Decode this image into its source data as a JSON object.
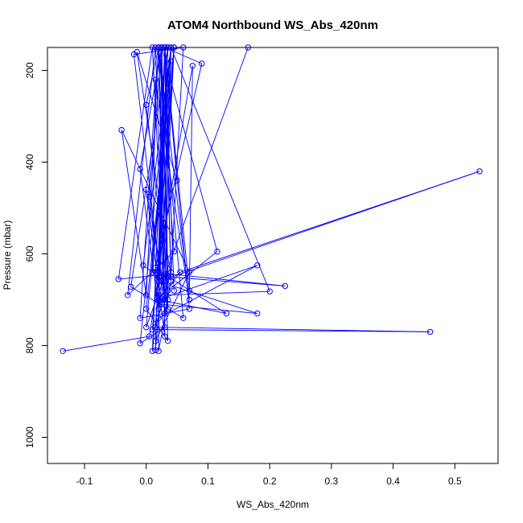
{
  "chart_data": {
    "type": "line",
    "title": "ATOM4 Northbound WS_Abs_420nm",
    "xlabel": "WS_Abs_420nm",
    "ylabel": "Pressure (mbar)",
    "xlim": [
      -0.16,
      0.57
    ],
    "ylim": [
      1057,
      150
    ],
    "y_reversed": true,
    "grid": false,
    "legend": "none",
    "x_ticks": [
      -0.1,
      0.0,
      0.1,
      0.2,
      0.3,
      0.4,
      0.5
    ],
    "x_tick_labels": [
      "-0.1",
      "0.0",
      "0.1",
      "0.2",
      "0.3",
      "0.4",
      "0.5"
    ],
    "y_ticks": [
      200,
      400,
      600,
      800,
      1000
    ],
    "y_tick_labels": [
      "200",
      "400",
      "600",
      "800",
      "1000"
    ],
    "series": [
      {
        "color": "#0000ff",
        "marker": "open-circle",
        "points": [
          [
            -0.135,
            812
          ],
          [
            0.005,
            780
          ],
          [
            0.02,
            650
          ],
          [
            0.03,
            150
          ],
          [
            0.04,
            640
          ],
          [
            0.015,
            760
          ],
          [
            0.46,
            770
          ],
          [
            0.01,
            765
          ],
          [
            0.02,
            600
          ],
          [
            0.045,
            150
          ],
          [
            0.025,
            710
          ],
          [
            0.18,
            730
          ],
          [
            0.02,
            660
          ],
          [
            0.54,
            420
          ],
          [
            0.055,
            640
          ],
          [
            0.02,
            700
          ],
          [
            0.13,
            730
          ],
          [
            0.03,
            645
          ],
          [
            -0.045,
            655
          ],
          [
            0.01,
            150
          ],
          [
            0.03,
            690
          ],
          [
            0.2,
            682
          ],
          [
            0.04,
            150
          ],
          [
            0.01,
            640
          ],
          [
            0.225,
            670
          ],
          [
            0.035,
            650
          ],
          [
            0.025,
            150
          ],
          [
            0.02,
            740
          ],
          [
            0.18,
            625
          ],
          [
            0.02,
            700
          ],
          [
            0.035,
            150
          ],
          [
            0.015,
            790
          ],
          [
            0.07,
            640
          ],
          [
            -0.04,
            330
          ],
          [
            0.0,
            690
          ],
          [
            0.02,
            150
          ],
          [
            0.0,
            275
          ],
          [
            0.035,
            680
          ],
          [
            0.115,
            595
          ],
          [
            0.025,
            150
          ],
          [
            -0.01,
            415
          ],
          [
            0.02,
            720
          ],
          [
            0.03,
            150
          ],
          [
            0.05,
            440
          ],
          [
            -0.015,
            160
          ],
          [
            0.04,
            650
          ],
          [
            0.06,
            150
          ],
          [
            -0.02,
            165
          ],
          [
            0.02,
            620
          ],
          [
            0.075,
            190
          ],
          [
            0.07,
            680
          ],
          [
            0.03,
            150
          ],
          [
            0.09,
            185
          ],
          [
            0.015,
            630
          ],
          [
            0.035,
            150
          ],
          [
            0.165,
            150
          ],
          [
            0.0,
            760
          ],
          [
            0.04,
            180
          ],
          [
            0.01,
            640
          ],
          [
            0.015,
            220
          ],
          [
            0.07,
            700
          ],
          [
            0.02,
            150
          ],
          [
            0.03,
            780
          ],
          [
            0.0,
            460
          ],
          [
            0.035,
            720
          ],
          [
            0.025,
            150
          ],
          [
            0.005,
            475
          ],
          [
            0.03,
            700
          ],
          [
            0.04,
            150
          ],
          [
            -0.005,
            625
          ],
          [
            0.02,
            650
          ],
          [
            0.035,
            150
          ],
          [
            -0.025,
            672
          ],
          [
            0.06,
            740
          ],
          [
            0.02,
            150
          ],
          [
            0.045,
            595
          ],
          [
            -0.03,
            690
          ],
          [
            0.015,
            150
          ],
          [
            0.03,
            730
          ],
          [
            0.04,
            660
          ],
          [
            0.03,
            150
          ],
          [
            0.01,
            812
          ],
          [
            0.02,
            690
          ],
          [
            0.045,
            150
          ],
          [
            0.0,
            720
          ],
          [
            0.035,
            790
          ],
          [
            0.02,
            150
          ],
          [
            -0.01,
            740
          ],
          [
            0.07,
            720
          ],
          [
            0.03,
            150
          ],
          [
            0.015,
            810
          ],
          [
            0.025,
            660
          ],
          [
            0.04,
            150
          ],
          [
            -0.01,
            795
          ],
          [
            0.03,
            760
          ],
          [
            0.025,
            150
          ],
          [
            0.02,
            812
          ],
          [
            0.035,
            700
          ],
          [
            0.03,
            150
          ],
          [
            0.045,
            680
          ]
        ]
      }
    ]
  }
}
